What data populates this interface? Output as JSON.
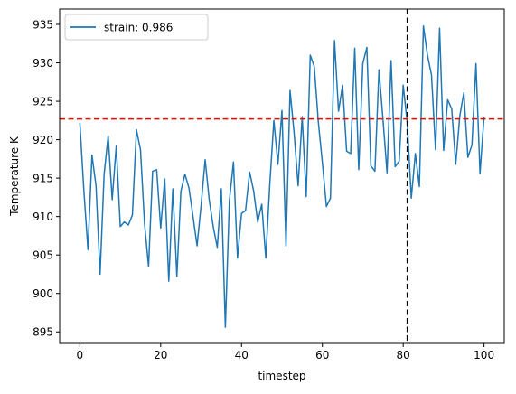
{
  "chart_data": {
    "type": "line",
    "title": "",
    "xlabel": "timestep",
    "ylabel": "Temperature K",
    "xlim": [
      -5,
      105
    ],
    "ylim": [
      893.5,
      937
    ],
    "xticks": [
      0,
      20,
      40,
      60,
      80,
      100
    ],
    "yticks": [
      895,
      900,
      905,
      910,
      915,
      920,
      925,
      930,
      935
    ],
    "grid": false,
    "legend_position": "top-left",
    "series": [
      {
        "name": "strain: 0.986",
        "color": "#1f77b4",
        "x": [
          0,
          1,
          2,
          3,
          4,
          5,
          6,
          7,
          8,
          9,
          10,
          11,
          12,
          13,
          14,
          15,
          16,
          17,
          18,
          19,
          20,
          21,
          22,
          23,
          24,
          25,
          26,
          27,
          28,
          29,
          30,
          31,
          32,
          33,
          34,
          35,
          36,
          37,
          38,
          39,
          40,
          41,
          42,
          43,
          44,
          45,
          46,
          47,
          48,
          49,
          50,
          51,
          52,
          53,
          54,
          55,
          56,
          57,
          58,
          59,
          60,
          61,
          62,
          63,
          64,
          65,
          66,
          67,
          68,
          69,
          70,
          71,
          72,
          73,
          74,
          75,
          76,
          77,
          78,
          79,
          80,
          81,
          82,
          83,
          84,
          85,
          86,
          87,
          88,
          89,
          90,
          91,
          92,
          93,
          94,
          95,
          96,
          97,
          98,
          99,
          100
        ],
        "values": [
          922.2,
          913.3,
          905.7,
          918.0,
          914.0,
          902.5,
          915.5,
          920.5,
          912.2,
          919.2,
          908.7,
          909.3,
          908.9,
          910.2,
          921.3,
          918.7,
          909.1,
          903.5,
          915.9,
          916.1,
          908.5,
          914.9,
          901.6,
          913.6,
          902.2,
          913.3,
          915.5,
          913.7,
          910.0,
          906.2,
          911.5,
          917.4,
          912.2,
          908.7,
          906.0,
          913.6,
          895.6,
          912.1,
          917.1,
          904.6,
          910.4,
          910.8,
          915.8,
          913.3,
          909.3,
          911.6,
          904.6,
          914.3,
          922.5,
          916.8,
          923.8,
          906.2,
          926.4,
          920.9,
          914.0,
          923.0,
          912.6,
          931.0,
          929.5,
          922.3,
          917.0,
          911.3,
          912.4,
          932.9,
          923.7,
          927.1,
          918.5,
          918.2,
          931.9,
          916.1,
          929.9,
          932.0,
          916.6,
          915.9,
          929.1,
          922.6,
          915.7,
          930.3,
          916.5,
          917.2,
          927.1,
          922.2,
          912.4,
          918.2,
          913.9,
          934.8,
          931.0,
          928.4,
          918.7,
          934.5,
          918.6,
          925.2,
          924.0,
          916.8,
          923.1,
          926.1,
          917.7,
          919.3,
          929.9,
          915.6,
          923.0
        ]
      }
    ],
    "reference_lines": [
      {
        "orientation": "horizontal",
        "value": 922.7,
        "color": "#ff0000",
        "style": "dashed"
      },
      {
        "orientation": "vertical",
        "value": 81,
        "color": "#000000",
        "style": "dashed"
      }
    ]
  }
}
